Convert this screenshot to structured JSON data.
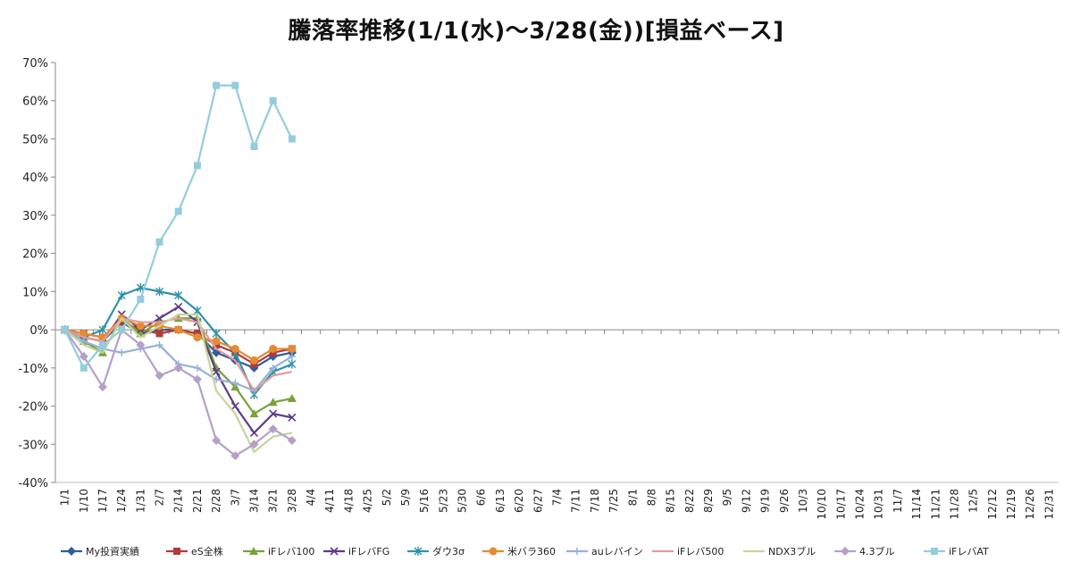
{
  "chart_data": {
    "type": "line",
    "title": "騰落率推移(1/1(水)～3/28(金))[損益ベース]",
    "xlabel": "",
    "ylabel": "",
    "ylim": [
      -40,
      70
    ],
    "y_ticks": [
      70,
      60,
      50,
      40,
      30,
      20,
      10,
      0,
      -10,
      -20,
      -30,
      -40
    ],
    "y_tick_labels": [
      "70%",
      "60%",
      "50%",
      "40%",
      "30%",
      "20%",
      "10%",
      "0%",
      "-10%",
      "-20%",
      "-30%",
      "-40%"
    ],
    "grid": false,
    "legend_position": "bottom",
    "x_tick_labels": [
      "1/1",
      "1/10",
      "1/17",
      "1/24",
      "1/31",
      "2/7",
      "2/14",
      "2/21",
      "2/28",
      "3/7",
      "3/14",
      "3/21",
      "3/28",
      "4/4",
      "4/11",
      "4/18",
      "4/25",
      "5/2",
      "5/9",
      "5/16",
      "5/23",
      "5/30",
      "6/6",
      "6/13",
      "6/20",
      "6/27",
      "7/4",
      "7/11",
      "7/18",
      "7/25",
      "8/1",
      "8/8",
      "8/15",
      "8/22",
      "8/29",
      "9/5",
      "9/12",
      "9/19",
      "9/26",
      "10/3",
      "10/10",
      "10/17",
      "10/24",
      "10/31",
      "11/7",
      "11/14",
      "11/21",
      "11/28",
      "12/5",
      "12/12",
      "12/19",
      "12/26",
      "12/31"
    ],
    "x": [
      "1/1",
      "1/10",
      "1/17",
      "1/24",
      "1/31",
      "2/7",
      "2/14",
      "2/21",
      "2/28",
      "3/7",
      "3/14",
      "3/21",
      "3/28"
    ],
    "series": [
      {
        "name": "My投資実績",
        "color": "#2E5E9E",
        "marker": "diamond",
        "values": [
          0,
          -2,
          -3,
          2,
          -1,
          0,
          0,
          -1,
          -6,
          -8,
          -10,
          -7,
          -6
        ]
      },
      {
        "name": "eS全株",
        "color": "#B23A3A",
        "marker": "square",
        "values": [
          0,
          -1,
          -2,
          2,
          0,
          -1,
          0,
          -1,
          -4,
          -6,
          -9,
          -6,
          -5
        ]
      },
      {
        "name": "iFレバ100",
        "color": "#77A33B",
        "marker": "triangle",
        "values": [
          0,
          -3,
          -6,
          3,
          -1,
          2,
          3,
          3,
          -10,
          -15,
          -22,
          -19,
          -18
        ]
      },
      {
        "name": "iFレバFG",
        "color": "#5C3C86",
        "marker": "x",
        "values": [
          0,
          -2,
          -3,
          4,
          0,
          3,
          6,
          2,
          -11,
          -20,
          -27,
          -22,
          -23
        ]
      },
      {
        "name": "ダウ3σ",
        "color": "#2F93AA",
        "marker": "star",
        "values": [
          0,
          -2,
          0,
          9,
          11,
          10,
          9,
          5,
          -1,
          -6,
          -17,
          -11,
          -9
        ]
      },
      {
        "name": "米バラ360",
        "color": "#E58B32",
        "marker": "circle",
        "values": [
          0,
          -1,
          -2,
          3,
          1,
          1,
          0,
          -2,
          -3,
          -5,
          -8,
          -5,
          -5
        ]
      },
      {
        "name": "auレバイン",
        "color": "#95B1D8",
        "marker": "plus",
        "values": [
          0,
          -3,
          -5,
          -6,
          -5,
          -4,
          -9,
          -10,
          -13,
          -14,
          -16,
          -10,
          -7
        ]
      },
      {
        "name": "iFレバ500",
        "color": "#E59898",
        "marker": "none",
        "values": [
          0,
          -2,
          -3,
          3,
          2,
          2,
          3,
          2,
          -5,
          -8,
          -16,
          -12,
          -11
        ]
      },
      {
        "name": "NDX3ブル",
        "color": "#C3D69B",
        "marker": "none",
        "values": [
          0,
          -4,
          -6,
          3,
          -2,
          1,
          4,
          4,
          -16,
          -22,
          -32,
          -28,
          -27
        ]
      },
      {
        "name": "4.3ブル",
        "color": "#B5A0C8",
        "marker": "diamond",
        "values": [
          0,
          -7,
          -15,
          0,
          -4,
          -12,
          -10,
          -13,
          -29,
          -33,
          -30,
          -26,
          -29
        ]
      },
      {
        "name": "iFレバAT",
        "color": "#93CDDD",
        "marker": "square",
        "values": [
          0,
          -10,
          -4,
          0,
          8,
          23,
          31,
          43,
          64,
          64,
          48,
          60,
          50
        ]
      }
    ]
  }
}
